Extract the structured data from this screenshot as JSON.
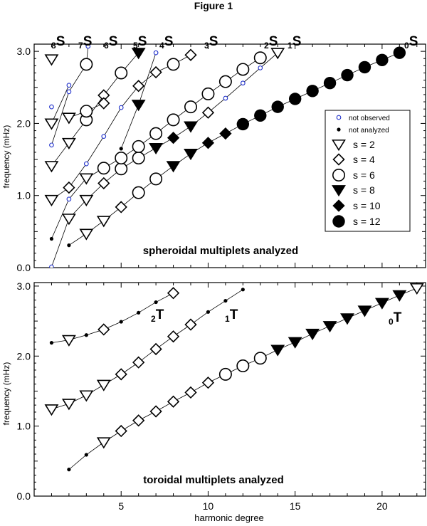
{
  "figure_title": "Figure 1",
  "xlabel": "harmonic degree",
  "chart_data": [
    {
      "type": "scatter",
      "title": "spheroidal multiplets analyzed",
      "ylabel": "frequency (mHz)",
      "xlim": [
        0,
        22.5
      ],
      "ylim": [
        0,
        3.1
      ],
      "yticks": [
        0.0,
        1.0,
        2.0,
        3.0
      ],
      "ytick_labels": [
        "0.0",
        "1.0",
        "2.0",
        "3.0"
      ],
      "legend_position": "right",
      "legend": [
        {
          "label": "not observed",
          "marker": "small-open-blue"
        },
        {
          "label": "not analyzed",
          "marker": "dot"
        },
        {
          "label": "s = 2",
          "marker": "tri-open"
        },
        {
          "label": "s = 4",
          "marker": "dia-open"
        },
        {
          "label": "s = 6",
          "marker": "circ-open"
        },
        {
          "label": "s = 8",
          "marker": "tri-filled"
        },
        {
          "label": "s = 10",
          "marker": "dia-filled"
        },
        {
          "label": "s = 12",
          "marker": "circ-filled"
        }
      ],
      "branches": [
        {
          "label": "0S",
          "n": "0",
          "letter": "S",
          "points": [
            [
              2,
              0.31,
              "dot"
            ],
            [
              3,
              0.47,
              "tri-open"
            ],
            [
              4,
              0.65,
              "tri-open"
            ],
            [
              5,
              0.84,
              "dia-open"
            ],
            [
              6,
              1.04,
              "circ-open"
            ],
            [
              7,
              1.23,
              "circ-open"
            ],
            [
              8,
              1.41,
              "tri-filled"
            ],
            [
              9,
              1.58,
              "tri-filled"
            ],
            [
              10,
              1.73,
              "dia-filled"
            ],
            [
              11,
              1.86,
              "dia-filled"
            ],
            [
              12,
              1.99,
              "circ-filled"
            ],
            [
              13,
              2.11,
              "circ-filled"
            ],
            [
              14,
              2.23,
              "circ-filled"
            ],
            [
              15,
              2.34,
              "circ-filled"
            ],
            [
              16,
              2.45,
              "circ-filled"
            ],
            [
              17,
              2.56,
              "circ-filled"
            ],
            [
              18,
              2.67,
              "circ-filled"
            ],
            [
              19,
              2.78,
              "circ-filled"
            ],
            [
              20,
              2.88,
              "circ-filled"
            ],
            [
              21,
              2.98,
              "circ-filled"
            ]
          ]
        },
        {
          "label": "1S",
          "n": "1",
          "letter": "S",
          "points": [
            [
              1,
              0.01,
              "small-open-blue"
            ],
            [
              2,
              0.68,
              "tri-open"
            ],
            [
              3,
              0.94,
              "tri-open"
            ],
            [
              4,
              1.17,
              "dia-open"
            ],
            [
              5,
              1.37,
              "circ-open"
            ],
            [
              6,
              1.52,
              "circ-open"
            ],
            [
              7,
              1.66,
              "tri-filled"
            ],
            [
              8,
              1.8,
              "dia-filled"
            ],
            [
              9,
              1.96,
              "tri-filled"
            ],
            [
              10,
              2.15,
              "dia-open"
            ],
            [
              11,
              2.35,
              "small-open-blue"
            ],
            [
              12,
              2.56,
              "small-open-blue"
            ],
            [
              13,
              2.77,
              "small-open-blue"
            ],
            [
              14,
              2.98,
              "tri-open"
            ]
          ]
        },
        {
          "label": "2S",
          "n": "2",
          "letter": "S",
          "points": [
            [
              1,
              0.4,
              "dot"
            ],
            [
              2,
              0.95,
              "small-open-blue"
            ],
            [
              3,
              1.24,
              "tri-open"
            ],
            [
              4,
              1.38,
              "circ-open"
            ],
            [
              5,
              1.52,
              "circ-open"
            ],
            [
              6,
              1.68,
              "circ-open"
            ],
            [
              7,
              1.86,
              "circ-open"
            ],
            [
              8,
              2.05,
              "circ-open"
            ],
            [
              9,
              2.23,
              "circ-open"
            ],
            [
              10,
              2.41,
              "circ-open"
            ],
            [
              11,
              2.58,
              "circ-open"
            ],
            [
              12,
              2.75,
              "circ-open"
            ],
            [
              13,
              2.91,
              "circ-open"
            ]
          ]
        },
        {
          "label": "3S",
          "n": "3",
          "letter": "S",
          "points": [
            [
              1,
              0.94,
              "tri-open"
            ],
            [
              2,
              1.11,
              "dia-open"
            ],
            [
              3,
              1.44,
              "small-open-blue"
            ],
            [
              4,
              1.82,
              "small-open-blue"
            ],
            [
              5,
              2.22,
              "small-open-blue"
            ],
            [
              6,
              2.52,
              "dia-open"
            ],
            [
              7,
              2.71,
              "dia-open"
            ],
            [
              8,
              2.82,
              "circ-open"
            ],
            [
              9,
              2.95,
              "dia-open"
            ]
          ]
        },
        {
          "label": "4S",
          "n": "4",
          "letter": "S",
          "points": [
            [
              5,
              1.65,
              "dot"
            ],
            [
              6,
              2.26,
              "tri-filled"
            ],
            [
              7,
              2.98,
              "small-open-blue"
            ]
          ]
        },
        {
          "label": "5S",
          "n": "5",
          "letter": "S",
          "points": [
            [
              1,
              1.41,
              "tri-open"
            ],
            [
              2,
              1.73,
              "tri-open"
            ],
            [
              3,
              2.05,
              "circ-open"
            ],
            [
              4,
              2.39,
              "dia-open"
            ],
            [
              5,
              2.7,
              "circ-open"
            ],
            [
              6,
              2.98,
              "tri-filled"
            ]
          ]
        },
        {
          "label": "6S",
          "n": "6",
          "letter": "S",
          "points": [
            [
              2,
              2.08,
              "tri-open"
            ],
            [
              3,
              2.17,
              "circ-open"
            ],
            [
              4,
              2.28,
              "dia-open"
            ]
          ]
        },
        {
          "label": "7S",
          "n": "7",
          "letter": "S",
          "points": [
            [
              1,
              1.7,
              "small-open-blue"
            ],
            [
              2,
              2.44,
              "small-open-blue"
            ],
            [
              3,
              2.82,
              "circ-open"
            ],
            [
              3.1,
              3.07,
              "small-open-blue"
            ]
          ]
        },
        {
          "label": "8S",
          "n": "8",
          "letter": "S",
          "points": [
            [
              1,
              2.0,
              "tri-open"
            ],
            [
              2,
              2.53,
              "small-open-blue"
            ]
          ]
        },
        {
          "label": "",
          "n": "",
          "letter": "",
          "points": [
            [
              1,
              2.23,
              "small-open-blue"
            ],
            [
              1,
              2.89,
              "tri-open"
            ]
          ]
        }
      ]
    },
    {
      "type": "scatter",
      "title": "toroidal multiplets analyzed",
      "ylabel": "frequency (mHz)",
      "xlim": [
        0,
        22.5
      ],
      "ylim": [
        0,
        3.05
      ],
      "yticks": [
        0.0,
        1.0,
        2.0,
        3.0
      ],
      "ytick_labels": [
        "0.0",
        "1.0",
        "2.0",
        "3.0"
      ],
      "xticks": [
        5,
        10,
        15,
        20
      ],
      "xtick_labels": [
        "5",
        "10",
        "15",
        "20"
      ],
      "branches": [
        {
          "label": "0T",
          "n": "0",
          "letter": "T",
          "points": [
            [
              2,
              0.38,
              "dot"
            ],
            [
              3,
              0.59,
              "dot"
            ],
            [
              4,
              0.77,
              "tri-open"
            ],
            [
              5,
              0.93,
              "dia-open"
            ],
            [
              6,
              1.08,
              "dia-open"
            ],
            [
              7,
              1.21,
              "dia-open"
            ],
            [
              8,
              1.35,
              "dia-open"
            ],
            [
              9,
              1.48,
              "dia-open"
            ],
            [
              10,
              1.62,
              "dia-open"
            ],
            [
              11,
              1.74,
              "circ-open"
            ],
            [
              12,
              1.86,
              "circ-open"
            ],
            [
              13,
              1.97,
              "circ-open"
            ],
            [
              14,
              2.09,
              "tri-filled"
            ],
            [
              15,
              2.2,
              "tri-filled"
            ],
            [
              16,
              2.32,
              "tri-filled"
            ],
            [
              17,
              2.43,
              "tri-filled"
            ],
            [
              18,
              2.54,
              "tri-filled"
            ],
            [
              19,
              2.65,
              "tri-filled"
            ],
            [
              20,
              2.76,
              "tri-filled"
            ],
            [
              21,
              2.87,
              "tri-filled"
            ],
            [
              22,
              2.97,
              "tri-open"
            ]
          ]
        },
        {
          "label": "1T",
          "n": "1",
          "letter": "T",
          "points": [
            [
              1,
              1.24,
              "tri-open"
            ],
            [
              2,
              1.32,
              "tri-open"
            ],
            [
              3,
              1.44,
              "tri-open"
            ],
            [
              4,
              1.59,
              "tri-open"
            ],
            [
              5,
              1.74,
              "dia-open"
            ],
            [
              6,
              1.91,
              "dia-open"
            ],
            [
              7,
              2.1,
              "dia-open"
            ],
            [
              8,
              2.28,
              "dia-open"
            ],
            [
              9,
              2.45,
              "dia-open"
            ],
            [
              10,
              2.63,
              "dot"
            ],
            [
              11,
              2.79,
              "dot"
            ],
            [
              12,
              2.95,
              "dot"
            ]
          ]
        },
        {
          "label": "2T",
          "n": "2",
          "letter": "T",
          "points": [
            [
              1,
              2.19,
              "dot"
            ],
            [
              2,
              2.23,
              "tri-open"
            ],
            [
              3,
              2.3,
              "dot"
            ],
            [
              4,
              2.38,
              "dia-open"
            ],
            [
              5,
              2.49,
              "dot"
            ],
            [
              6,
              2.62,
              "dot"
            ],
            [
              7,
              2.77,
              "dot"
            ],
            [
              8,
              2.9,
              "dia-open"
            ]
          ]
        }
      ]
    }
  ]
}
